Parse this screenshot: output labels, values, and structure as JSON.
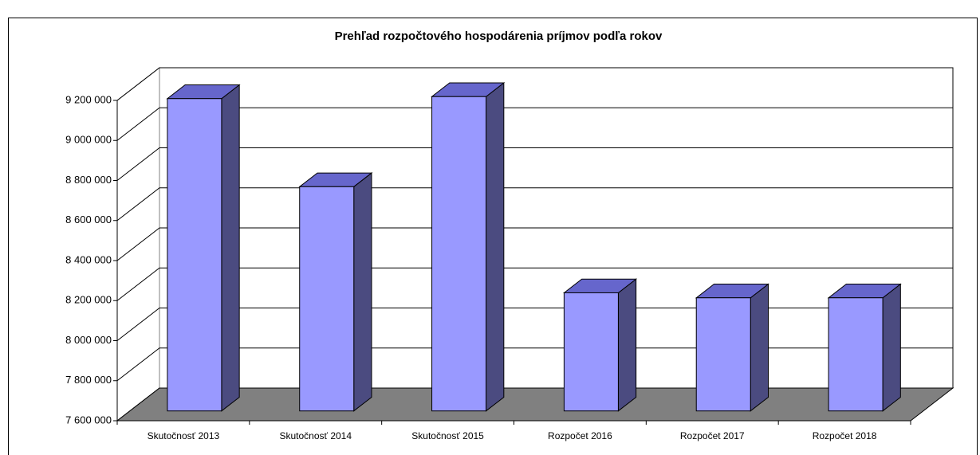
{
  "chart_data": {
    "type": "bar3d",
    "title": "Prehľad rozpočtového hospodárenia príjmov podľa rokov",
    "categories": [
      "Skutočnosť 2013",
      "Skutočnosť 2014",
      "Skutočnosť 2015",
      "Rozpočet 2016",
      "Rozpočet 2017",
      "Rozpočet 2018"
    ],
    "values": [
      9160000,
      8720000,
      9170000,
      8190000,
      8165000,
      8165000
    ],
    "color": "#9999ff",
    "ylim": [
      7600000,
      9200000
    ],
    "yticks": [
      {
        "value": 7600000,
        "label": "7 600 000"
      },
      {
        "value": 7800000,
        "label": "7 800 000"
      },
      {
        "value": 8000000,
        "label": "8 000 000"
      },
      {
        "value": 8200000,
        "label": "8 200 000"
      },
      {
        "value": 8400000,
        "label": "8 400 000"
      },
      {
        "value": 8600000,
        "label": "8 600 000"
      },
      {
        "value": 8800000,
        "label": "8 800 000"
      },
      {
        "value": 9000000,
        "label": "9 000 000"
      },
      {
        "value": 9200000,
        "label": "9 200 000"
      }
    ],
    "grid": true
  }
}
